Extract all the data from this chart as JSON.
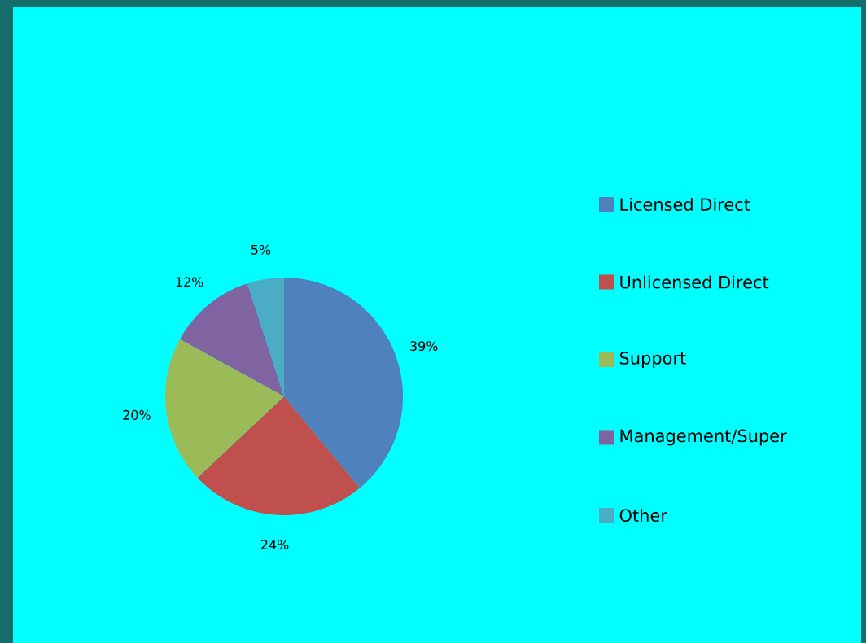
{
  "chart_data": {
    "type": "pie",
    "categories": [
      "Licensed Direct",
      "Unlicensed Direct",
      "Support",
      "Management/Super",
      "Other"
    ],
    "values": [
      39,
      24,
      20,
      12,
      5
    ],
    "colors": [
      "#4f81bd",
      "#c0504d",
      "#9bbb59",
      "#8064a2",
      "#4bacc6"
    ],
    "value_labels": [
      "39%",
      "24%",
      "20%",
      "12%",
      "5%"
    ],
    "legend": "right"
  }
}
